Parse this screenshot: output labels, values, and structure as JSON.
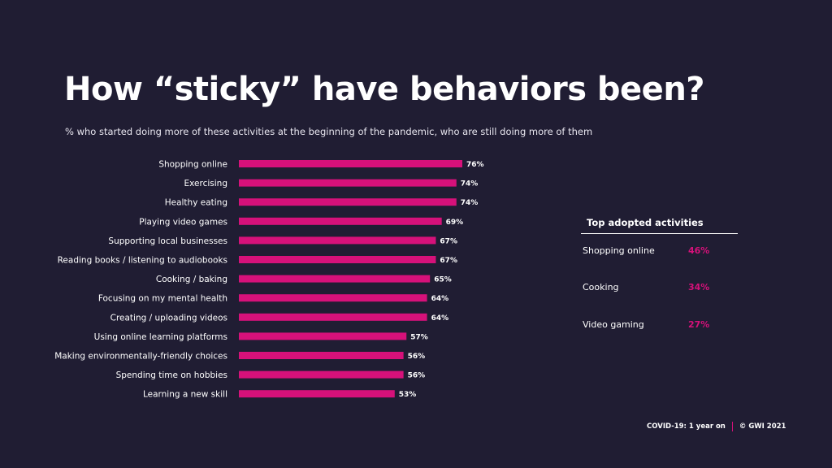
{
  "title": "How “sticky” have behaviors been?",
  "subtitle": "% who started doing more of these activities at the beginning of the pandemic, who are still doing more of them",
  "colors": {
    "background": "#201d33",
    "bar": "#d6117a",
    "accent": "#d6117a",
    "text": "#ffffff"
  },
  "chart_data": {
    "type": "bar",
    "orientation": "horizontal",
    "categories": [
      "Shopping online",
      "Exercising",
      "Healthy eating",
      "Playing video games",
      "Supporting local businesses",
      "Reading books / listening to audiobooks",
      "Cooking / baking",
      "Focusing on my mental health",
      "Creating / uploading videos",
      "Using online learning platforms",
      "Making environmentally-friendly choices",
      "Spending time on hobbies",
      "Learning a new skill"
    ],
    "values": [
      76,
      74,
      74,
      69,
      67,
      67,
      65,
      64,
      64,
      57,
      56,
      56,
      53
    ],
    "value_labels": [
      "76%",
      "74%",
      "74%",
      "69%",
      "67%",
      "67%",
      "65%",
      "64%",
      "64%",
      "57%",
      "56%",
      "56%",
      "53%"
    ],
    "title": "",
    "xlabel": "",
    "ylabel": "",
    "xlim": [
      0,
      100
    ],
    "grid": false
  },
  "panel": {
    "title": "Top adopted activities",
    "rows": [
      {
        "name": "Shopping online",
        "value": "46%"
      },
      {
        "name": "Cooking",
        "value": "34%"
      },
      {
        "name": "Video gaming",
        "value": "27%"
      }
    ]
  },
  "footer": {
    "report": "COVID-19: 1 year on",
    "copyright": "© GWI 2021"
  }
}
